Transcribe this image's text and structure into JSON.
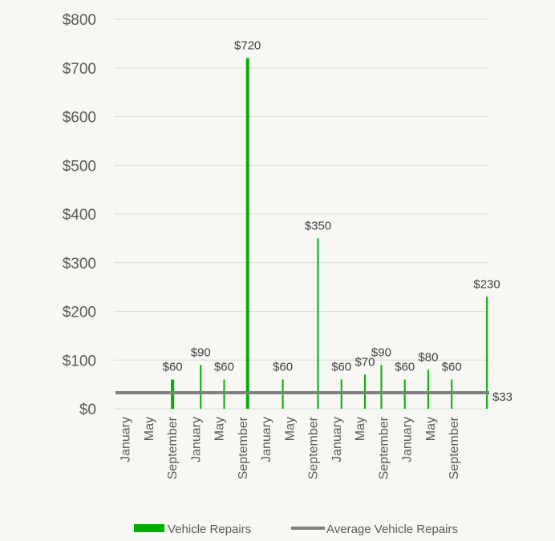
{
  "chart_data": {
    "type": "bar",
    "title": "",
    "xlabel": "",
    "ylabel": "",
    "ylim": [
      0,
      800
    ],
    "y_ticks": [
      "$0",
      "$100",
      "$200",
      "$300",
      "$400",
      "$500",
      "$600",
      "$700",
      "$800"
    ],
    "x_tick_labels": [
      "January",
      "May",
      "September",
      "January",
      "May",
      "September",
      "January",
      "May",
      "September",
      "January",
      "May",
      "September",
      "January",
      "May",
      "September"
    ],
    "grid": true,
    "legend_position": "bottom",
    "series": [
      {
        "name": "Vehicle Repairs",
        "type": "bar",
        "color": "#00b000",
        "points": [
          {
            "x": 2.5,
            "value": 60,
            "label": "$60",
            "weight": "thick"
          },
          {
            "x": 3.7,
            "value": 90,
            "label": "$90"
          },
          {
            "x": 4.7,
            "value": 60,
            "label": "$60"
          },
          {
            "x": 5.7,
            "value": 720,
            "label": "$720",
            "weight": "thick"
          },
          {
            "x": 7.2,
            "value": 60,
            "label": "$60"
          },
          {
            "x": 8.7,
            "value": 350,
            "label": "$350"
          },
          {
            "x": 9.7,
            "value": 60,
            "label": "$60"
          },
          {
            "x": 10.7,
            "value": 70,
            "label": "$70"
          },
          {
            "x": 11.4,
            "value": 90,
            "label": "$90"
          },
          {
            "x": 12.4,
            "value": 60,
            "label": "$60"
          },
          {
            "x": 13.4,
            "value": 80,
            "label": "$80"
          },
          {
            "x": 14.4,
            "value": 60,
            "label": "$60"
          },
          {
            "x": 15.9,
            "value": 230,
            "label": "$230"
          }
        ]
      },
      {
        "name": "Average Vehicle Repairs",
        "type": "line",
        "color": "#808080",
        "value": 33,
        "label": "$33"
      }
    ]
  }
}
